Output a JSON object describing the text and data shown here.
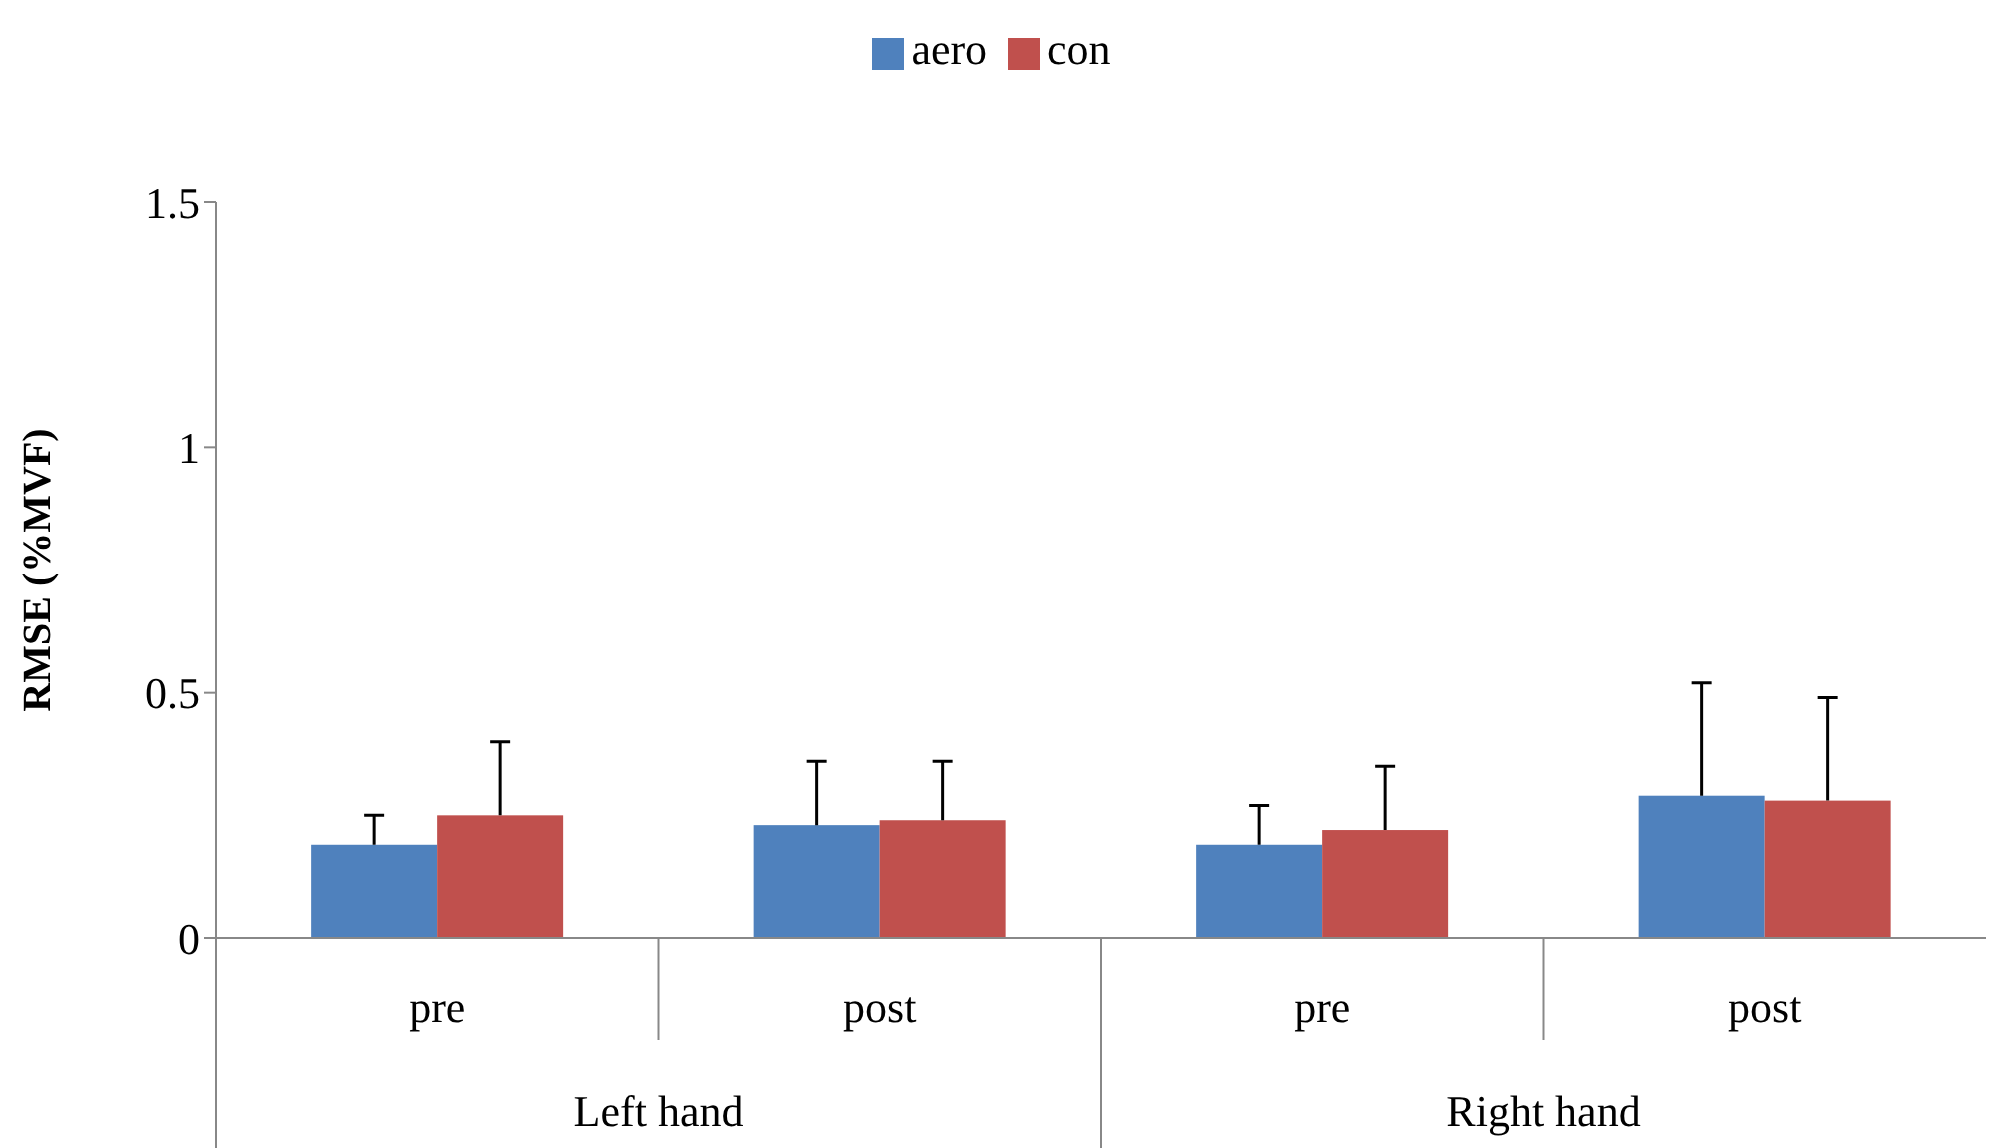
{
  "chart_data": {
    "type": "bar",
    "ylabel": "RMSE (%MVF)",
    "categories": [
      "pre",
      "post",
      "pre",
      "post"
    ],
    "annotations": [
      "Left hand",
      "Right hand"
    ],
    "series": [
      {
        "name": "aero",
        "color": "#4f81bd",
        "values": [
          0.19,
          0.23,
          0.19,
          0.29
        ],
        "errors": [
          [
            0.19,
            0.25
          ],
          [
            0.23,
            0.36
          ],
          [
            0.19,
            0.27
          ],
          [
            0.29,
            0.52
          ]
        ]
      },
      {
        "name": "con",
        "color": "#c0504d",
        "values": [
          0.25,
          0.24,
          0.22,
          0.28
        ],
        "errors": [
          [
            0.25,
            0.4
          ],
          [
            0.24,
            0.36
          ],
          [
            0.22,
            0.35
          ],
          [
            0.28,
            0.49
          ]
        ]
      }
    ],
    "ylim": [
      0,
      1.5
    ],
    "yticks": [
      0,
      0.5,
      1,
      1.5
    ],
    "grid": false,
    "legend": "top"
  }
}
